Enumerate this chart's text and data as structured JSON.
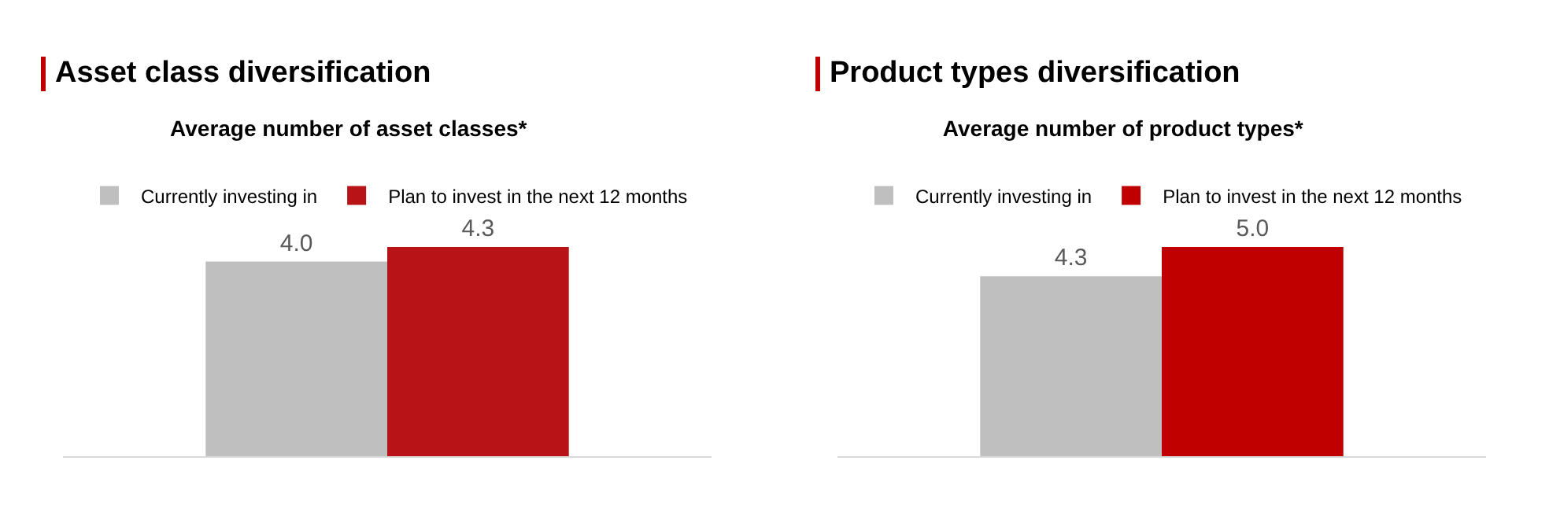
{
  "chart_data": [
    {
      "type": "bar",
      "title": "Asset class diversification",
      "subtitle": "Average number of asset classes*",
      "categories": [
        null
      ],
      "legend": "top",
      "series": [
        {
          "name": "Currently investing in",
          "color": "#bfbfbf",
          "values": [
            4.0
          ],
          "value_labels": [
            "4.0"
          ]
        },
        {
          "name": "Plan to invest in the next 12 months",
          "color": "#b81417",
          "values": [
            4.3
          ],
          "value_labels": [
            "4.3"
          ]
        }
      ]
    },
    {
      "type": "bar",
      "title": "Product types diversification",
      "subtitle": "Average number of product types*",
      "categories": [
        null
      ],
      "legend": "top",
      "series": [
        {
          "name": "Currently investing in",
          "color": "#bfbfbf",
          "values": [
            4.3
          ],
          "value_labels": [
            "4.3"
          ]
        },
        {
          "name": "Plan to invest in the next 12 months",
          "color": "#c00000",
          "values": [
            5.0
          ],
          "value_labels": [
            "5.0"
          ]
        }
      ]
    }
  ]
}
